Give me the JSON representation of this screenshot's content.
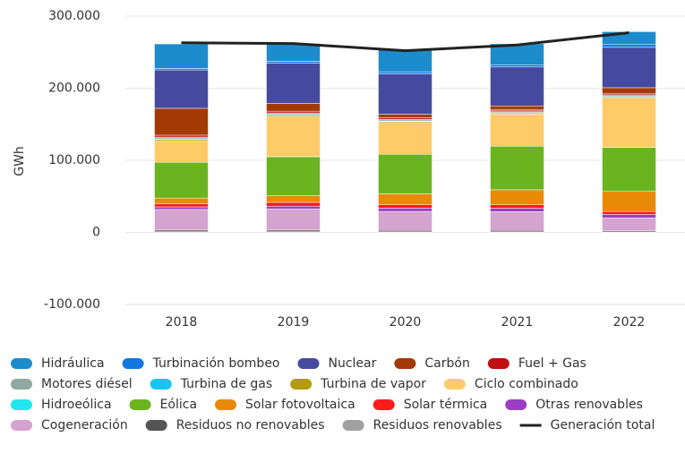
{
  "chart_data": {
    "type": "bar",
    "stacked": true,
    "y_label": "GWh",
    "categories": [
      "2018",
      "2019",
      "2020",
      "2021",
      "2022"
    ],
    "ylim": [
      -100000,
      300000
    ],
    "yticks": [
      {
        "value": -100000,
        "label": "-100.000"
      },
      0,
      {
        "value": 100000,
        "label": "100.000"
      },
      {
        "value": 200000,
        "label": "200.000"
      },
      {
        "value": 300000,
        "label": "300.000"
      }
    ],
    "grid": true,
    "series": [
      {
        "name": "Hidráulica",
        "color": "#1c8ccc",
        "values": [
          34100,
          24700,
          30500,
          29600,
          17900
        ]
      },
      {
        "name": "Turbinación bombeo",
        "color": "#1377e0",
        "values": [
          2000,
          2700,
          3100,
          2600,
          3800
        ]
      },
      {
        "name": "Nuclear",
        "color": "#464a9e",
        "values": [
          53200,
          55800,
          55800,
          54000,
          56000
        ]
      },
      {
        "name": "Carbón",
        "color": "#a33a05",
        "values": [
          37300,
          10700,
          5000,
          4800,
          7800
        ]
      },
      {
        "name": "Fuel + Gas",
        "color": "#c00f0f",
        "values": [
          2600,
          2400,
          2000,
          2000,
          2100
        ]
      },
      {
        "name": "Motores diésel",
        "color": "#8fa8a0",
        "values": [
          2500,
          2400,
          2300,
          2300,
          2300
        ]
      },
      {
        "name": "Turbina de gas",
        "color": "#17c6ee",
        "values": [
          600,
          1100,
          800,
          800,
          900
        ]
      },
      {
        "name": "Turbina de vapor",
        "color": "#b39b0d",
        "values": [
          1900,
          2000,
          1400,
          1400,
          1400
        ]
      },
      {
        "name": "Ciclo combinado",
        "color": "#ffcb69",
        "values": [
          30000,
          55200,
          44000,
          44500,
          68200
        ]
      },
      {
        "name": "Hidroeólica",
        "color": "#22e6ee",
        "values": [
          20,
          20,
          20,
          20,
          20
        ]
      },
      {
        "name": "Eólica",
        "color": "#6ab51f",
        "values": [
          49600,
          54200,
          54900,
          60500,
          61200
        ]
      },
      {
        "name": "Solar fotovoltaica",
        "color": "#e98a06",
        "values": [
          7800,
          9200,
          15300,
          20900,
          27900
        ]
      },
      {
        "name": "Solar térmica",
        "color": "#ff1a1a",
        "values": [
          4400,
          5200,
          4500,
          4700,
          4100
        ]
      },
      {
        "name": "Otras renovables",
        "color": "#9a3fc4",
        "values": [
          3600,
          4000,
          4600,
          4700,
          4700
        ]
      },
      {
        "name": "Cogeneración",
        "color": "#d4a3cf",
        "values": [
          28600,
          29200,
          26300,
          26000,
          17600
        ]
      },
      {
        "name": "Residuos no renovables",
        "color": "#555555",
        "values": [
          2300,
          2300,
          2000,
          2000,
          1800
        ]
      },
      {
        "name": "Residuos renovables",
        "color": "#a0a0a0",
        "values": [
          900,
          900,
          800,
          800,
          700
        ]
      }
    ],
    "total": {
      "name": "Generación total",
      "color": "#222222",
      "values": [
        263000,
        262000,
        252000,
        260000,
        277000
      ]
    }
  }
}
